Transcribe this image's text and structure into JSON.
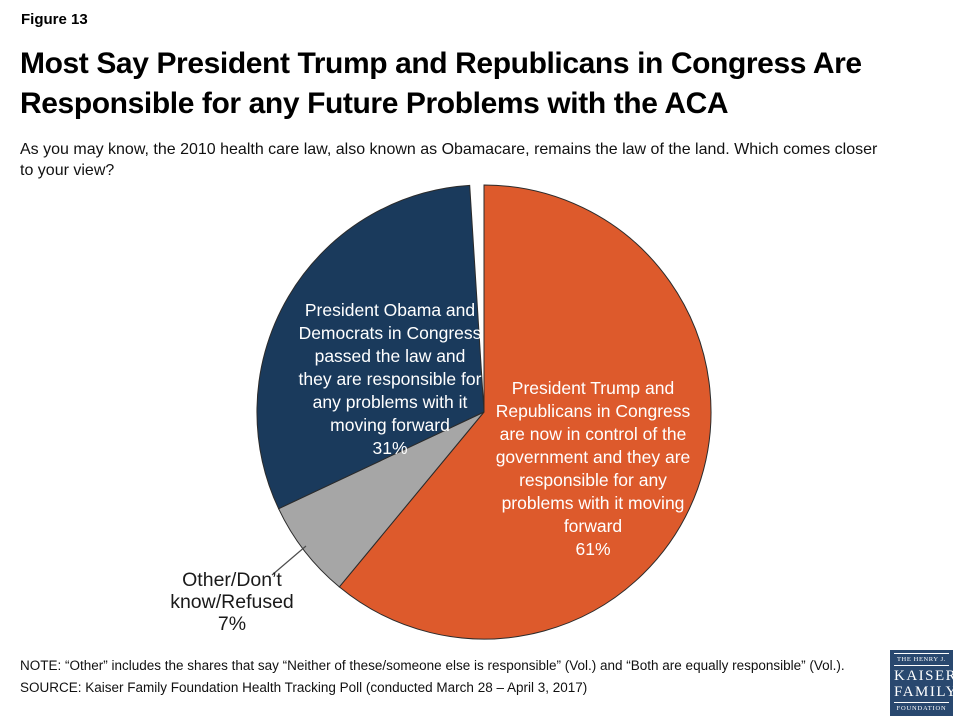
{
  "header": {
    "figure_label": "Figure 13",
    "title": "Most Say President Trump and Republicans in Congress Are\nResponsible for any Future Problems with the ACA",
    "subtitle": "As you may know, the 2010 health care law, also known as Obamacare, remains the law of the land. Which comes closer\nto your view?"
  },
  "chart_data": {
    "type": "pie",
    "title": "Most Say President Trump and Republicans in Congress Are Responsible for any Future Problems with the ACA",
    "start_angle_deg": 0,
    "direction": "clockwise",
    "legend_position": "none",
    "slices": [
      {
        "name": "trump-republicans",
        "label": "President Trump and\nRepublicans in Congress\nare now in control of the\ngovernment and they are\nresponsible for any\nproblems with it moving\nforward",
        "value": 61,
        "pct_label": "61%",
        "color": "#DD5A2C",
        "label_color": "#FFFFFF",
        "label_position": "inside"
      },
      {
        "name": "other-dont-know-refused",
        "label": "Other/Don’t\nknow/Refused",
        "value": 7,
        "pct_label": "7%",
        "color": "#A6A6A6",
        "label_color": "#1A1A1A",
        "label_position": "outside-left"
      },
      {
        "name": "obama-democrats",
        "label": "President Obama and\nDemocrats in Congress\npassed the law and\nthey are responsible for\nany problems with it\nmoving forward",
        "value": 31,
        "pct_label": "31%",
        "color": "#1A3A5C",
        "label_color": "#FFFFFF",
        "label_position": "inside"
      }
    ]
  },
  "footer": {
    "note": "NOTE: “Other” includes the shares that say “Neither of these/someone else is responsible” (Vol.) and “Both are equally responsible” (Vol.).",
    "source": "SOURCE: Kaiser Family Foundation Health Tracking Poll (conducted March 28 – April 3, 2017)",
    "logo": {
      "line1": "THE HENRY J.",
      "line2": "KAISER",
      "line3": "FAMILY",
      "line4": "FOUNDATION",
      "color": "#29486F"
    }
  }
}
